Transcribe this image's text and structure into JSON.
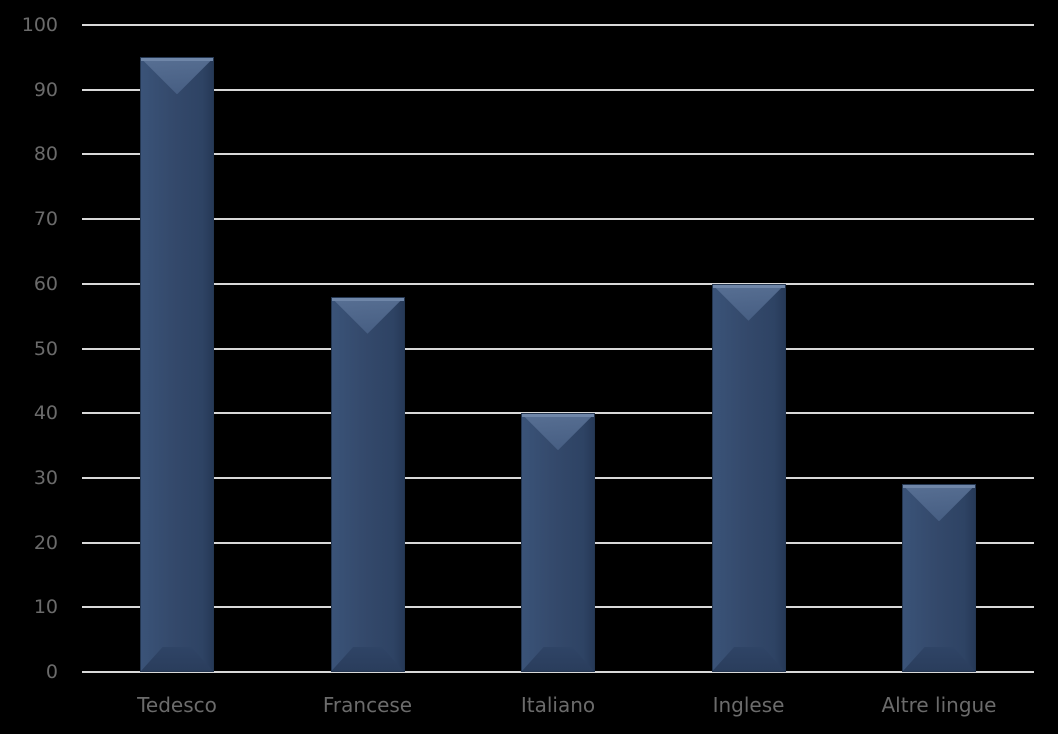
{
  "chart_data": {
    "type": "bar",
    "title": "",
    "xlabel": "",
    "ylabel": "",
    "categories": [
      "Tedesco",
      "Francese",
      "Italiano",
      "Inglese",
      "Altre lingue"
    ],
    "values": [
      95,
      58,
      40,
      60,
      29
    ],
    "ylim": [
      0,
      100
    ],
    "yticks": [
      0,
      10,
      20,
      30,
      40,
      50,
      60,
      70,
      80,
      90,
      100
    ],
    "grid": true,
    "legend": null,
    "bar_color": "#34496b",
    "background": "#000000"
  }
}
